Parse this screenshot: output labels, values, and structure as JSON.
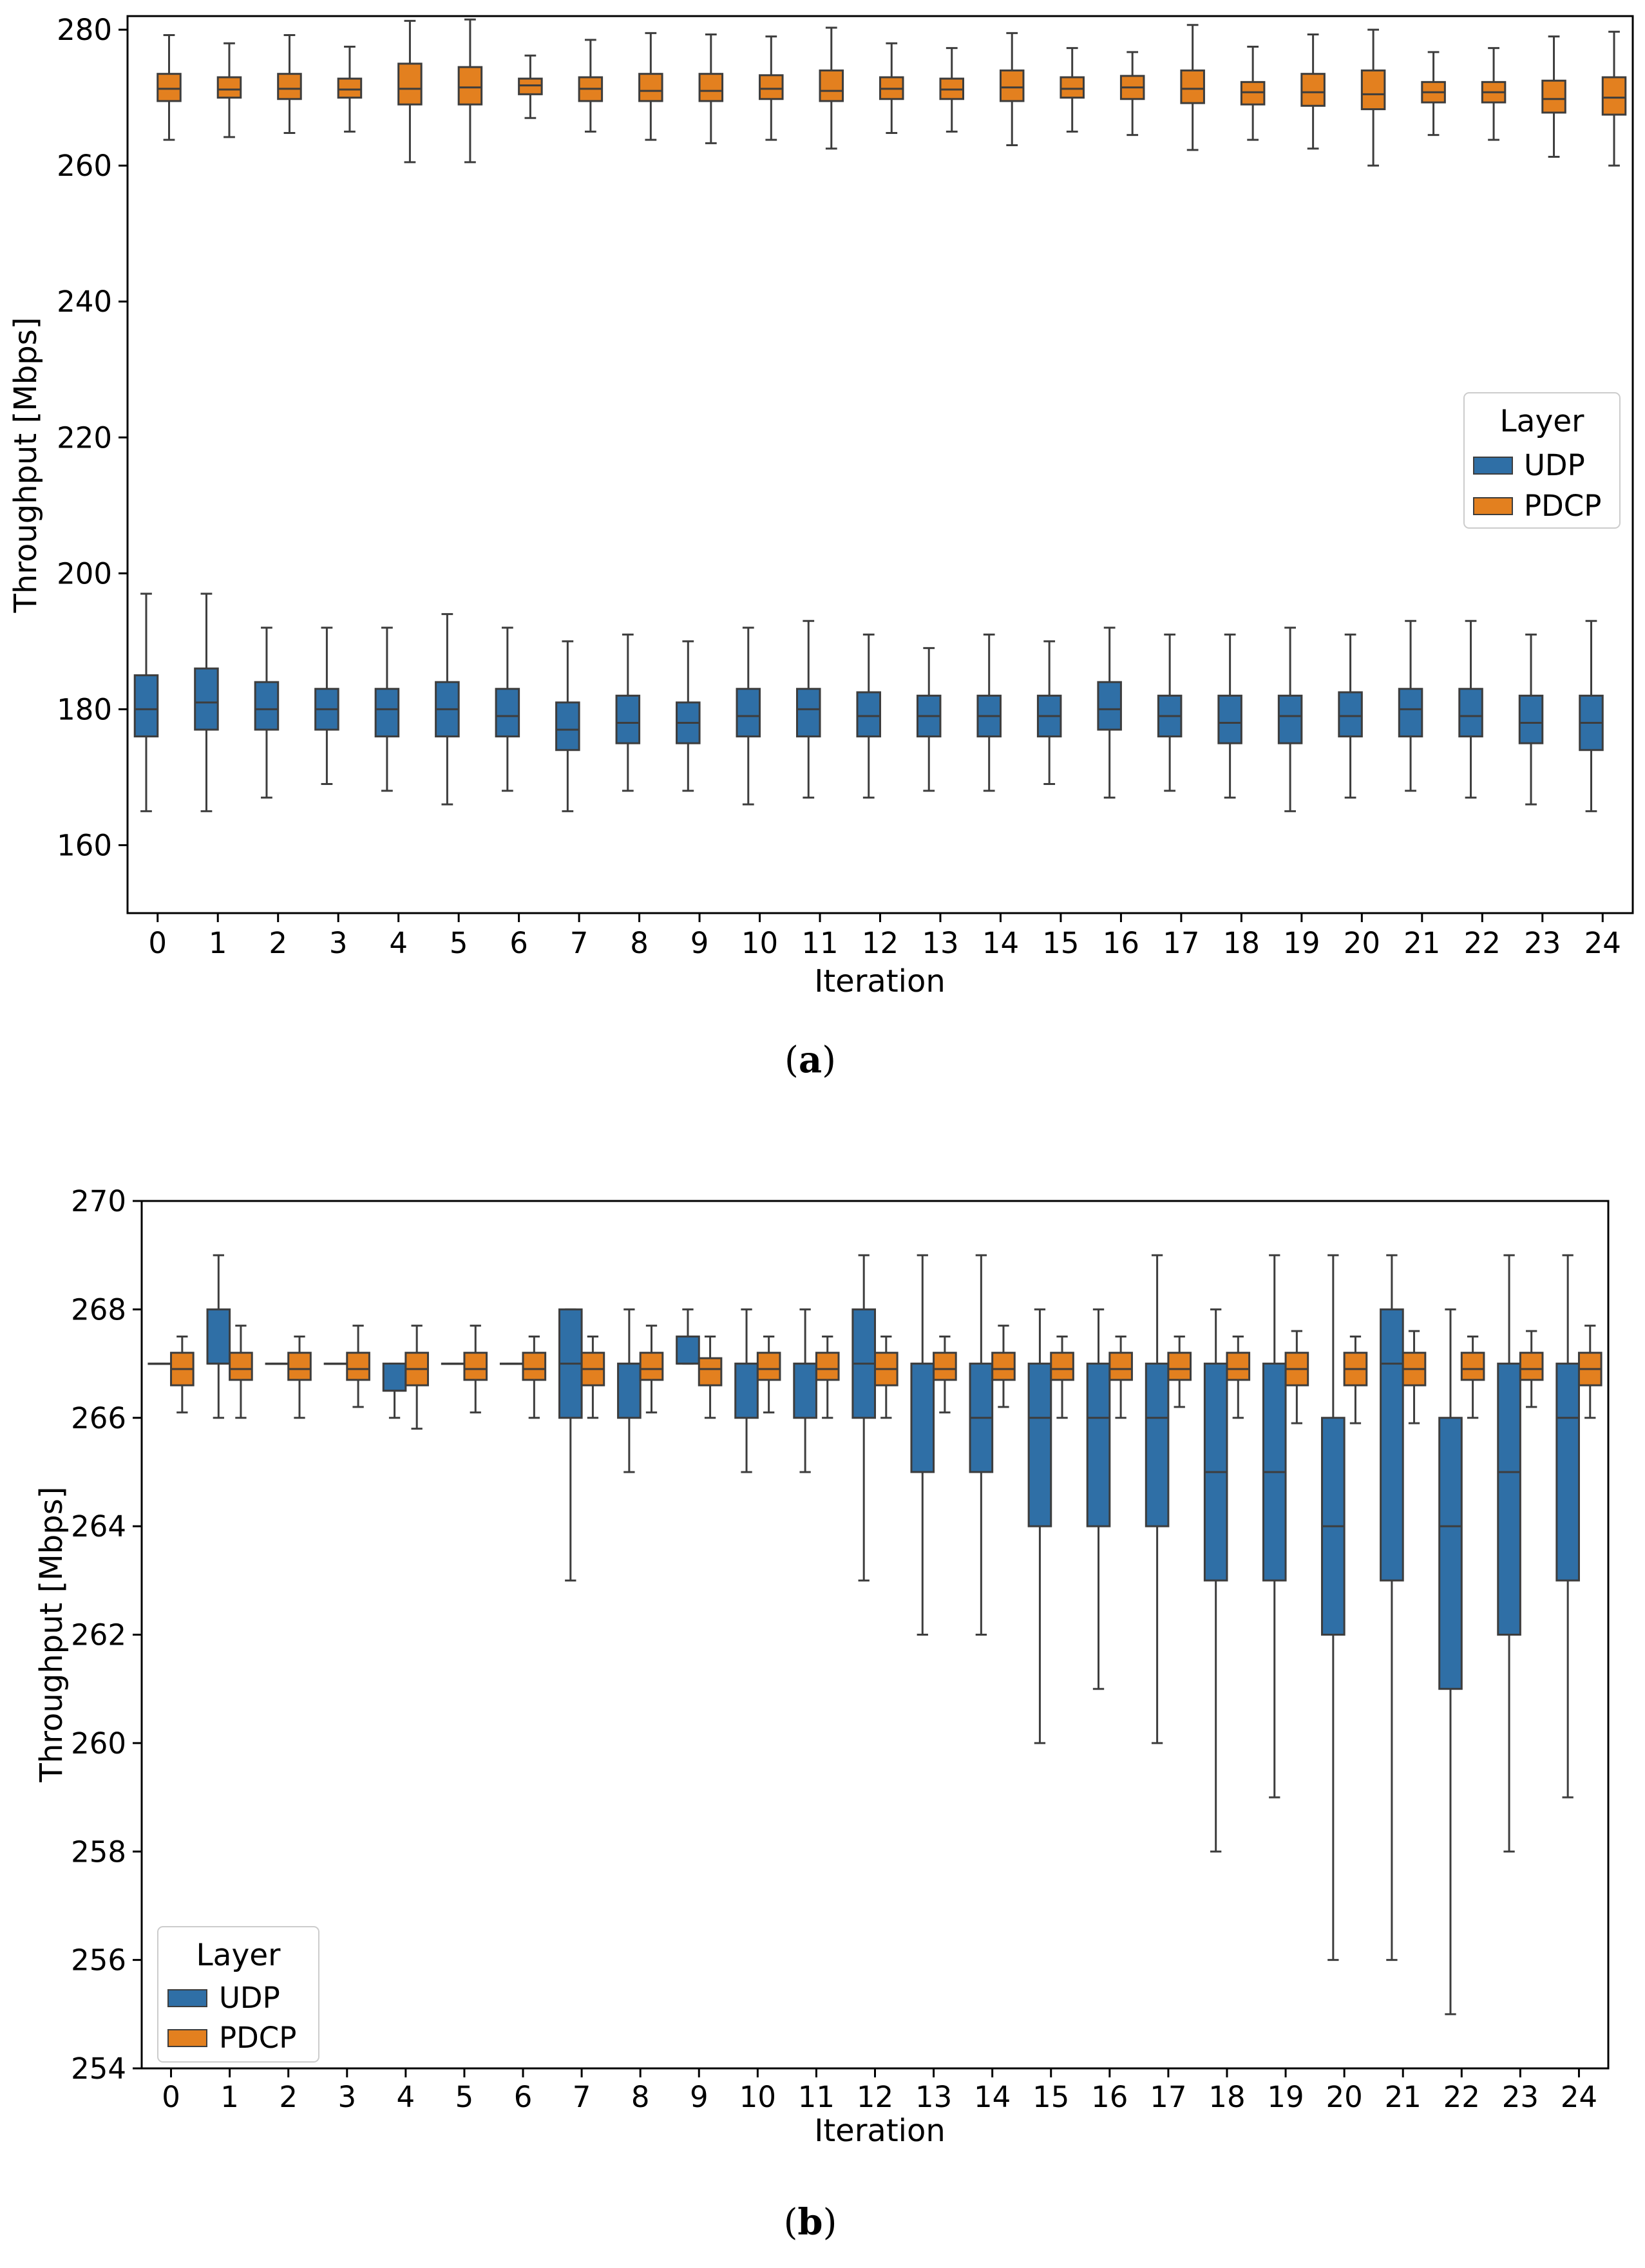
{
  "figure": {
    "caption_a": {
      "open": "(",
      "letter": "a",
      "close": ")"
    },
    "caption_b": {
      "open": "(",
      "letter": "b",
      "close": ")"
    }
  },
  "colors": {
    "UDP": "#2f6fa6",
    "PDCP": "#e3801f",
    "line": "#3d3d3d"
  },
  "chart_data": [
    {
      "id": "a",
      "type": "boxplot",
      "title": "",
      "xlabel": "Iteration",
      "ylabel": "Throughput [Mbps]",
      "ylim": [
        150,
        282
      ],
      "yticks": [
        160,
        180,
        200,
        220,
        240,
        260,
        280
      ],
      "legend": {
        "title": "Layer",
        "position": "right",
        "entries": [
          "UDP",
          "PDCP"
        ]
      },
      "categories": [
        "0",
        "1",
        "2",
        "3",
        "4",
        "5",
        "6",
        "7",
        "8",
        "9",
        "10",
        "11",
        "12",
        "13",
        "14",
        "15",
        "16",
        "17",
        "18",
        "19",
        "20",
        "21",
        "22",
        "23",
        "24"
      ],
      "series": [
        {
          "name": "UDP",
          "boxes": [
            {
              "whislo": 165,
              "q1": 176,
              "med": 180,
              "q3": 185,
              "whishi": 197
            },
            {
              "whislo": 165,
              "q1": 177,
              "med": 181,
              "q3": 186,
              "whishi": 197
            },
            {
              "whislo": 167,
              "q1": 177,
              "med": 180,
              "q3": 184,
              "whishi": 192
            },
            {
              "whislo": 169,
              "q1": 177,
              "med": 180,
              "q3": 183,
              "whishi": 192
            },
            {
              "whislo": 168,
              "q1": 176,
              "med": 180,
              "q3": 183,
              "whishi": 192
            },
            {
              "whislo": 166,
              "q1": 176,
              "med": 180,
              "q3": 184,
              "whishi": 194
            },
            {
              "whislo": 168,
              "q1": 176,
              "med": 179,
              "q3": 183,
              "whishi": 192
            },
            {
              "whislo": 165,
              "q1": 174,
              "med": 177,
              "q3": 181,
              "whishi": 190
            },
            {
              "whislo": 168,
              "q1": 175,
              "med": 178,
              "q3": 182,
              "whishi": 191
            },
            {
              "whislo": 168,
              "q1": 175,
              "med": 178,
              "q3": 181,
              "whishi": 190
            },
            {
              "whislo": 166,
              "q1": 176,
              "med": 179,
              "q3": 183,
              "whishi": 192
            },
            {
              "whislo": 167,
              "q1": 176,
              "med": 180,
              "q3": 183,
              "whishi": 193
            },
            {
              "whislo": 167,
              "q1": 176,
              "med": 179,
              "q3": 182.5,
              "whishi": 191
            },
            {
              "whislo": 168,
              "q1": 176,
              "med": 179,
              "q3": 182,
              "whishi": 189
            },
            {
              "whislo": 168,
              "q1": 176,
              "med": 179,
              "q3": 182,
              "whishi": 191
            },
            {
              "whislo": 169,
              "q1": 176,
              "med": 179,
              "q3": 182,
              "whishi": 190
            },
            {
              "whislo": 167,
              "q1": 177,
              "med": 180,
              "q3": 184,
              "whishi": 192
            },
            {
              "whislo": 168,
              "q1": 176,
              "med": 179,
              "q3": 182,
              "whishi": 191
            },
            {
              "whislo": 167,
              "q1": 175,
              "med": 178,
              "q3": 182,
              "whishi": 191
            },
            {
              "whislo": 165,
              "q1": 175,
              "med": 179,
              "q3": 182,
              "whishi": 192
            },
            {
              "whislo": 167,
              "q1": 176,
              "med": 179,
              "q3": 182.5,
              "whishi": 191
            },
            {
              "whislo": 168,
              "q1": 176,
              "med": 180,
              "q3": 183,
              "whishi": 193
            },
            {
              "whislo": 167,
              "q1": 176,
              "med": 179,
              "q3": 183,
              "whishi": 193
            },
            {
              "whislo": 166,
              "q1": 175,
              "med": 178,
              "q3": 182,
              "whishi": 191
            },
            {
              "whislo": 165,
              "q1": 174,
              "med": 178,
              "q3": 182,
              "whishi": 193
            }
          ]
        },
        {
          "name": "PDCP",
          "boxes": [
            {
              "whislo": 263.8,
              "q1": 269.5,
              "med": 271.3,
              "q3": 273.5,
              "whishi": 279.2
            },
            {
              "whislo": 264.2,
              "q1": 270,
              "med": 271.2,
              "q3": 273,
              "whishi": 278
            },
            {
              "whislo": 264.8,
              "q1": 269.8,
              "med": 271.3,
              "q3": 273.5,
              "whishi": 279.2
            },
            {
              "whislo": 265,
              "q1": 270,
              "med": 271.2,
              "q3": 272.8,
              "whishi": 277.5
            },
            {
              "whislo": 260.5,
              "q1": 269,
              "med": 271.3,
              "q3": 275,
              "whishi": 281.3
            },
            {
              "whislo": 260.5,
              "q1": 269,
              "med": 271.5,
              "q3": 274.5,
              "whishi": 281.5
            },
            {
              "whislo": 267,
              "q1": 270.5,
              "med": 271.8,
              "q3": 272.8,
              "whishi": 276.2
            },
            {
              "whislo": 265,
              "q1": 269.5,
              "med": 271.3,
              "q3": 273,
              "whishi": 278.5
            },
            {
              "whislo": 263.8,
              "q1": 269.5,
              "med": 271,
              "q3": 273.5,
              "whishi": 279.5
            },
            {
              "whislo": 263.3,
              "q1": 269.5,
              "med": 271,
              "q3": 273.5,
              "whishi": 279.3
            },
            {
              "whislo": 263.8,
              "q1": 269.8,
              "med": 271.3,
              "q3": 273.3,
              "whishi": 279
            },
            {
              "whislo": 262.5,
              "q1": 269.5,
              "med": 271,
              "q3": 274,
              "whishi": 280.3
            },
            {
              "whislo": 264.8,
              "q1": 269.8,
              "med": 271.3,
              "q3": 273,
              "whishi": 278
            },
            {
              "whislo": 265,
              "q1": 269.8,
              "med": 271.2,
              "q3": 272.8,
              "whishi": 277.3
            },
            {
              "whislo": 263,
              "q1": 269.5,
              "med": 271.5,
              "q3": 274,
              "whishi": 279.5
            },
            {
              "whislo": 265,
              "q1": 270,
              "med": 271.3,
              "q3": 273,
              "whishi": 277.3
            },
            {
              "whislo": 264.5,
              "q1": 269.8,
              "med": 271.5,
              "q3": 273.2,
              "whishi": 276.7
            },
            {
              "whislo": 262.3,
              "q1": 269.2,
              "med": 271.3,
              "q3": 274,
              "whishi": 280.7
            },
            {
              "whislo": 263.8,
              "q1": 269,
              "med": 270.8,
              "q3": 272.3,
              "whishi": 277.5
            },
            {
              "whislo": 262.5,
              "q1": 268.8,
              "med": 270.8,
              "q3": 273.5,
              "whishi": 279.3
            },
            {
              "whislo": 260,
              "q1": 268.3,
              "med": 270.5,
              "q3": 274,
              "whishi": 280
            },
            {
              "whislo": 264.5,
              "q1": 269.3,
              "med": 270.8,
              "q3": 272.3,
              "whishi": 276.7
            },
            {
              "whislo": 263.8,
              "q1": 269.3,
              "med": 270.8,
              "q3": 272.3,
              "whishi": 277.3
            },
            {
              "whislo": 261.3,
              "q1": 267.8,
              "med": 269.8,
              "q3": 272.5,
              "whishi": 279
            },
            {
              "whislo": 260,
              "q1": 267.5,
              "med": 270,
              "q3": 273,
              "whishi": 279.7
            }
          ]
        }
      ]
    },
    {
      "id": "b",
      "type": "boxplot",
      "title": "",
      "xlabel": "Iteration",
      "ylabel": "Throughput [Mbps]",
      "ylim": [
        254,
        270
      ],
      "yticks": [
        254,
        256,
        258,
        260,
        262,
        264,
        266,
        268,
        270
      ],
      "legend": {
        "title": "Layer",
        "position": "lower-left",
        "entries": [
          "UDP",
          "PDCP"
        ]
      },
      "categories": [
        "0",
        "1",
        "2",
        "3",
        "4",
        "5",
        "6",
        "7",
        "8",
        "9",
        "10",
        "11",
        "12",
        "13",
        "14",
        "15",
        "16",
        "17",
        "18",
        "19",
        "20",
        "21",
        "22",
        "23",
        "24"
      ],
      "series": [
        {
          "name": "UDP",
          "boxes": [
            {
              "whislo": 267,
              "q1": 267,
              "med": 267,
              "q3": 267,
              "whishi": 267
            },
            {
              "whislo": 266,
              "q1": 267,
              "med": 267,
              "q3": 268,
              "whishi": 269
            },
            {
              "whislo": 267,
              "q1": 267,
              "med": 267,
              "q3": 267,
              "whishi": 267
            },
            {
              "whislo": 267,
              "q1": 267,
              "med": 267,
              "q3": 267,
              "whishi": 267
            },
            {
              "whislo": 266,
              "q1": 266.5,
              "med": 266.5,
              "q3": 267,
              "whishi": 267
            },
            {
              "whislo": 267,
              "q1": 267,
              "med": 267,
              "q3": 267,
              "whishi": 267
            },
            {
              "whislo": 267,
              "q1": 267,
              "med": 267,
              "q3": 267,
              "whishi": 267
            },
            {
              "whislo": 263,
              "q1": 266,
              "med": 267,
              "q3": 268,
              "whishi": 268
            },
            {
              "whislo": 265,
              "q1": 266,
              "med": 267,
              "q3": 267,
              "whishi": 268
            },
            {
              "whislo": 267,
              "q1": 267,
              "med": 267,
              "q3": 267.5,
              "whishi": 268
            },
            {
              "whislo": 265,
              "q1": 266,
              "med": 267,
              "q3": 267,
              "whishi": 268
            },
            {
              "whislo": 265,
              "q1": 266,
              "med": 267,
              "q3": 267,
              "whishi": 268
            },
            {
              "whislo": 263,
              "q1": 266,
              "med": 267,
              "q3": 268,
              "whishi": 269
            },
            {
              "whislo": 262,
              "q1": 265,
              "med": 267,
              "q3": 267,
              "whishi": 269
            },
            {
              "whislo": 262,
              "q1": 265,
              "med": 266,
              "q3": 267,
              "whishi": 269
            },
            {
              "whislo": 260,
              "q1": 264,
              "med": 266,
              "q3": 267,
              "whishi": 268
            },
            {
              "whislo": 261,
              "q1": 264,
              "med": 266,
              "q3": 267,
              "whishi": 268
            },
            {
              "whislo": 260,
              "q1": 264,
              "med": 266,
              "q3": 267,
              "whishi": 269
            },
            {
              "whislo": 258,
              "q1": 263,
              "med": 265,
              "q3": 267,
              "whishi": 268
            },
            {
              "whislo": 259,
              "q1": 263,
              "med": 265,
              "q3": 267,
              "whishi": 269
            },
            {
              "whislo": 256,
              "q1": 262,
              "med": 264,
              "q3": 266,
              "whishi": 269
            },
            {
              "whislo": 256,
              "q1": 263,
              "med": 267,
              "q3": 268,
              "whishi": 269
            },
            {
              "whislo": 255,
              "q1": 261,
              "med": 264,
              "q3": 266,
              "whishi": 268
            },
            {
              "whislo": 258,
              "q1": 262,
              "med": 265,
              "q3": 267,
              "whishi": 269
            },
            {
              "whislo": 259,
              "q1": 263,
              "med": 266,
              "q3": 267,
              "whishi": 269
            }
          ]
        },
        {
          "name": "PDCP",
          "boxes": [
            {
              "whislo": 266.1,
              "q1": 266.6,
              "med": 266.9,
              "q3": 267.2,
              "whishi": 267.5
            },
            {
              "whislo": 266,
              "q1": 266.7,
              "med": 266.9,
              "q3": 267.2,
              "whishi": 267.7
            },
            {
              "whislo": 266,
              "q1": 266.7,
              "med": 266.9,
              "q3": 267.2,
              "whishi": 267.5
            },
            {
              "whislo": 266.2,
              "q1": 266.7,
              "med": 266.9,
              "q3": 267.2,
              "whishi": 267.7
            },
            {
              "whislo": 265.8,
              "q1": 266.6,
              "med": 266.9,
              "q3": 267.2,
              "whishi": 267.7
            },
            {
              "whislo": 266.1,
              "q1": 266.7,
              "med": 266.9,
              "q3": 267.2,
              "whishi": 267.7
            },
            {
              "whislo": 266,
              "q1": 266.7,
              "med": 266.9,
              "q3": 267.2,
              "whishi": 267.5
            },
            {
              "whislo": 266,
              "q1": 266.6,
              "med": 266.9,
              "q3": 267.2,
              "whishi": 267.5
            },
            {
              "whislo": 266.1,
              "q1": 266.7,
              "med": 266.9,
              "q3": 267.2,
              "whishi": 267.7
            },
            {
              "whislo": 266,
              "q1": 266.6,
              "med": 266.9,
              "q3": 267.1,
              "whishi": 267.5
            },
            {
              "whislo": 266.1,
              "q1": 266.7,
              "med": 266.9,
              "q3": 267.2,
              "whishi": 267.5
            },
            {
              "whislo": 266,
              "q1": 266.7,
              "med": 266.9,
              "q3": 267.2,
              "whishi": 267.5
            },
            {
              "whislo": 266,
              "q1": 266.6,
              "med": 266.9,
              "q3": 267.2,
              "whishi": 267.5
            },
            {
              "whislo": 266.1,
              "q1": 266.7,
              "med": 266.9,
              "q3": 267.2,
              "whishi": 267.5
            },
            {
              "whislo": 266.2,
              "q1": 266.7,
              "med": 266.9,
              "q3": 267.2,
              "whishi": 267.7
            },
            {
              "whislo": 266,
              "q1": 266.7,
              "med": 266.9,
              "q3": 267.2,
              "whishi": 267.5
            },
            {
              "whislo": 266,
              "q1": 266.7,
              "med": 266.9,
              "q3": 267.2,
              "whishi": 267.5
            },
            {
              "whislo": 266.2,
              "q1": 266.7,
              "med": 266.9,
              "q3": 267.2,
              "whishi": 267.5
            },
            {
              "whislo": 266,
              "q1": 266.7,
              "med": 266.9,
              "q3": 267.2,
              "whishi": 267.5
            },
            {
              "whislo": 265.9,
              "q1": 266.6,
              "med": 266.9,
              "q3": 267.2,
              "whishi": 267.6
            },
            {
              "whislo": 265.9,
              "q1": 266.6,
              "med": 266.9,
              "q3": 267.2,
              "whishi": 267.5
            },
            {
              "whislo": 265.9,
              "q1": 266.6,
              "med": 266.9,
              "q3": 267.2,
              "whishi": 267.6
            },
            {
              "whislo": 266,
              "q1": 266.7,
              "med": 266.9,
              "q3": 267.2,
              "whishi": 267.5
            },
            {
              "whislo": 266.2,
              "q1": 266.7,
              "med": 266.9,
              "q3": 267.2,
              "whishi": 267.6
            },
            {
              "whislo": 266,
              "q1": 266.6,
              "med": 266.9,
              "q3": 267.2,
              "whishi": 267.7
            }
          ]
        }
      ]
    }
  ]
}
